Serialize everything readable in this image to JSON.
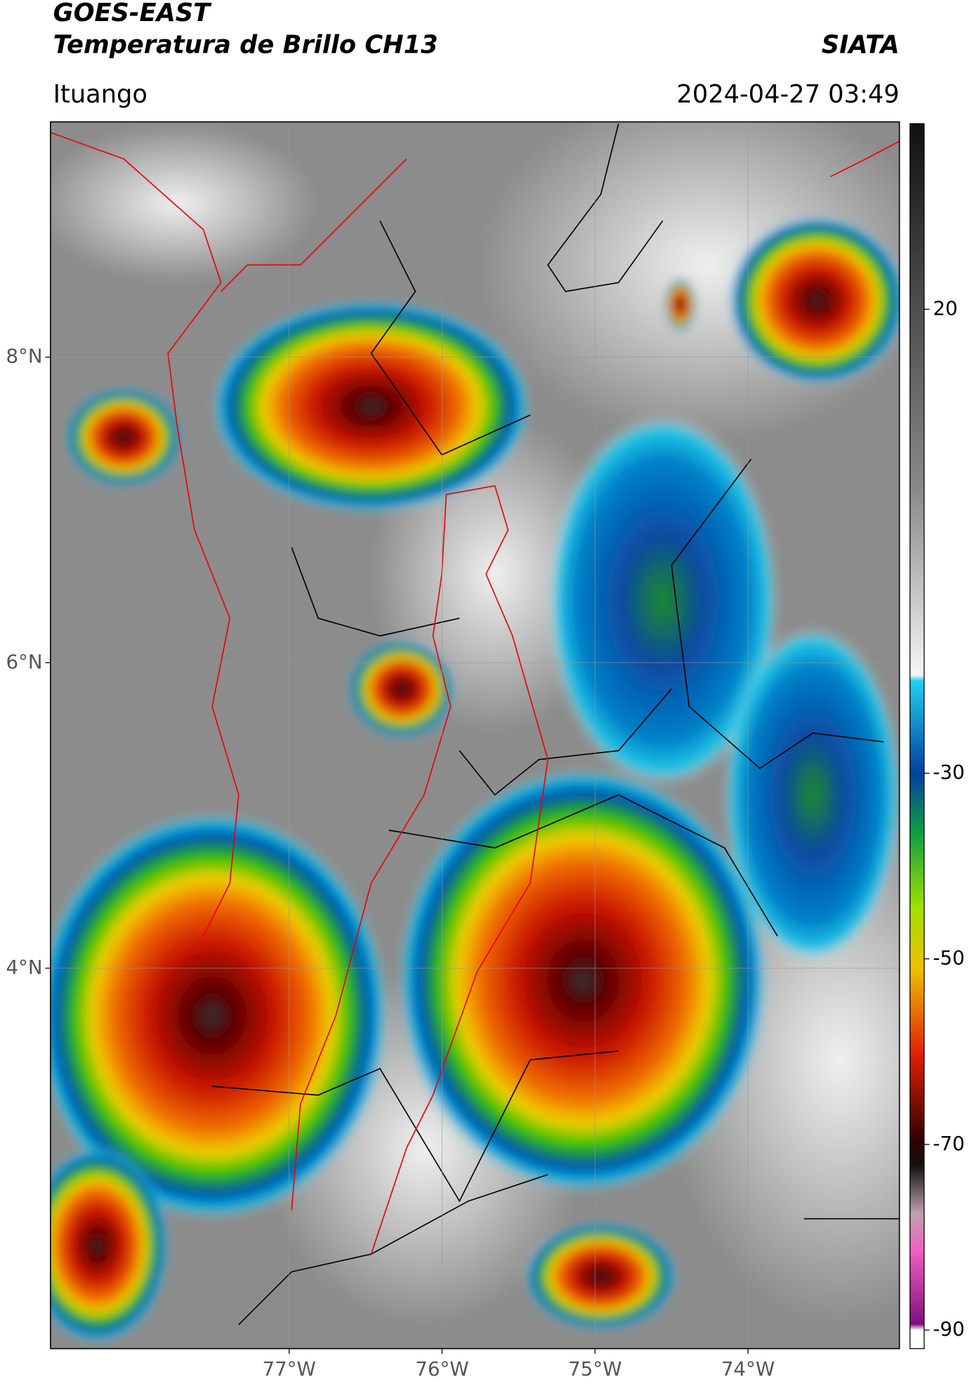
{
  "header": {
    "satellite": "GOES-EAST",
    "product": "Temperatura de Brillo CH13",
    "source": "SIATA",
    "location": "Ituango",
    "timestamp": "2024-04-27 03:49"
  },
  "map": {
    "xlim": [
      -78.56,
      -73.01
    ],
    "ylim": [
      1.51,
      9.54
    ],
    "lat_ticks": [
      {
        "value": 8,
        "label": "8°N"
      },
      {
        "value": 6,
        "label": "6°N"
      },
      {
        "value": 4,
        "label": "4°N"
      }
    ],
    "lon_ticks": [
      {
        "value": -77,
        "label": "77°W"
      },
      {
        "value": -76,
        "label": "76°W"
      },
      {
        "value": -75,
        "label": "75°W"
      },
      {
        "value": -74,
        "label": "74°W"
      }
    ],
    "grid": true
  },
  "colorbar": {
    "lim": [
      -92,
      40
    ],
    "ticks": [
      20,
      -30,
      -50,
      -70,
      -90
    ]
  }
}
